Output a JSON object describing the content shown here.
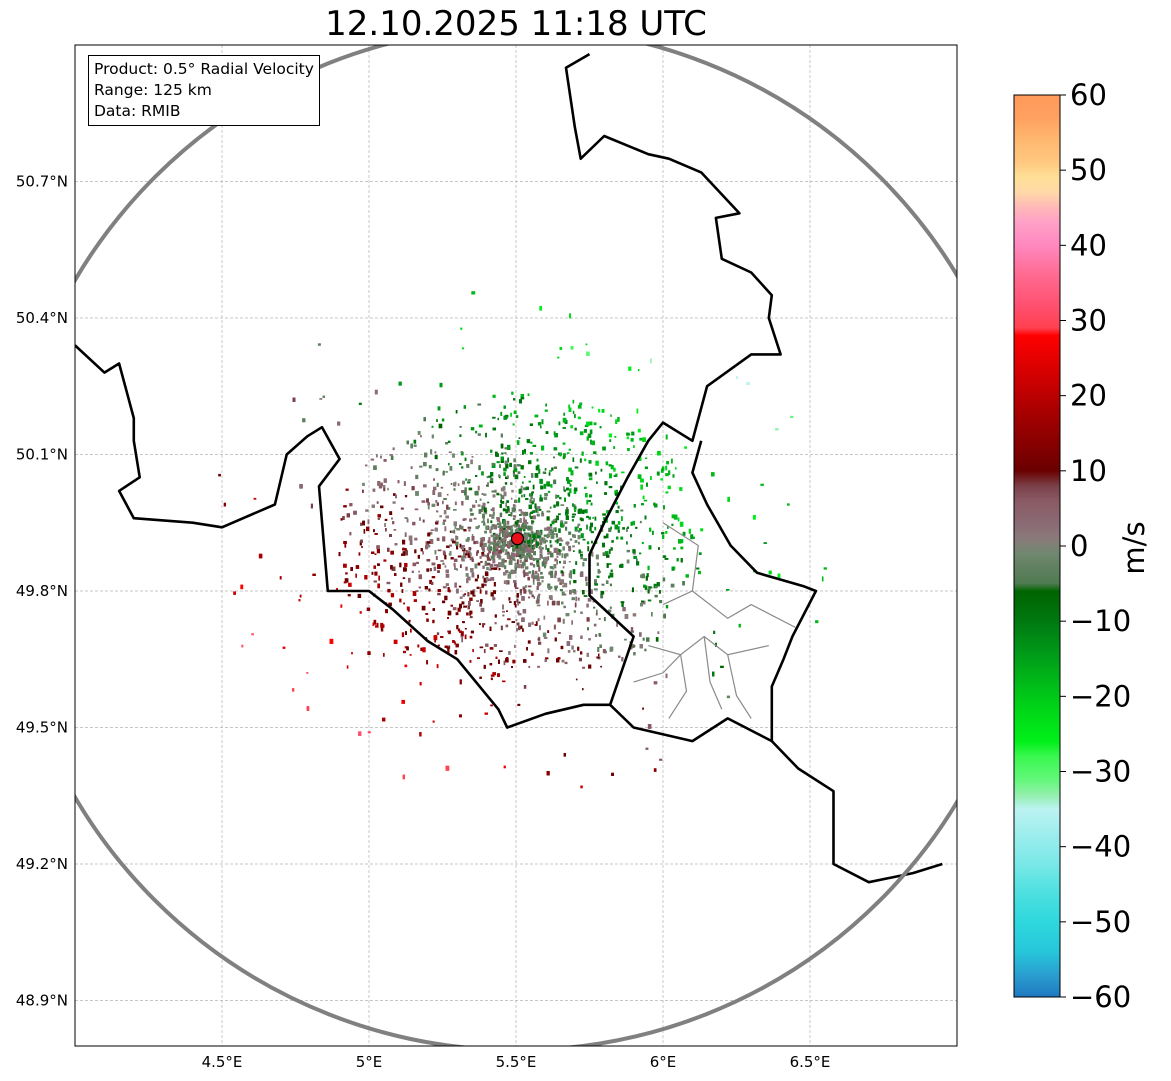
{
  "title": "12.10.2025 11:18 UTC",
  "info": {
    "product": "Product: 0.5° Radial Velocity",
    "range": "Range: 125 km",
    "data": "Data: RMIB"
  },
  "axes": {
    "lon_range": [
      4.0,
      7.0
    ],
    "lat_range": [
      48.8,
      51.0
    ],
    "lon_ticks": [
      {
        "value": 4.5,
        "label": "4.5°E"
      },
      {
        "value": 5.0,
        "label": "5°E"
      },
      {
        "value": 5.5,
        "label": "5.5°E"
      },
      {
        "value": 6.0,
        "label": "6°E"
      },
      {
        "value": 6.5,
        "label": "6.5°E"
      }
    ],
    "lat_ticks": [
      {
        "value": 50.7,
        "label": "50.7°N"
      },
      {
        "value": 50.4,
        "label": "50.4°N"
      },
      {
        "value": 50.1,
        "label": "50.1°N"
      },
      {
        "value": 49.8,
        "label": "49.8°N"
      },
      {
        "value": 49.5,
        "label": "49.5°N"
      },
      {
        "value": 49.2,
        "label": "49.2°N"
      },
      {
        "value": 48.9,
        "label": "48.9°N"
      }
    ]
  },
  "radar": {
    "lon": 5.505,
    "lat": 49.915,
    "range_km": 125,
    "marker_color": "#e8101a",
    "ring_color": "#808080"
  },
  "colorbar": {
    "label": "m/s",
    "min": -60,
    "max": 60,
    "ticks": [
      {
        "value": 60,
        "label": "60"
      },
      {
        "value": 50,
        "label": "50"
      },
      {
        "value": 40,
        "label": "40"
      },
      {
        "value": 30,
        "label": "30"
      },
      {
        "value": 20,
        "label": "20"
      },
      {
        "value": 10,
        "label": "10"
      },
      {
        "value": 0,
        "label": "0"
      },
      {
        "value": -10,
        "label": "−10"
      },
      {
        "value": -20,
        "label": "−20"
      },
      {
        "value": -30,
        "label": "−30"
      },
      {
        "value": -40,
        "label": "−40"
      },
      {
        "value": -50,
        "label": "−50"
      },
      {
        "value": -60,
        "label": "−60"
      }
    ],
    "stops": [
      {
        "v": -60,
        "c": "#1f78c1"
      },
      {
        "v": -57,
        "c": "#2a9fd0"
      },
      {
        "v": -54,
        "c": "#26c6da"
      },
      {
        "v": -50,
        "c": "#2ed8dd"
      },
      {
        "v": -46,
        "c": "#4fe0e0"
      },
      {
        "v": -42,
        "c": "#7de8e8"
      },
      {
        "v": -38,
        "c": "#a0eeee"
      },
      {
        "v": -35,
        "c": "#bdf2f2"
      },
      {
        "v": -33,
        "c": "#90f0a8"
      },
      {
        "v": -31,
        "c": "#60f878"
      },
      {
        "v": -28,
        "c": "#3af850"
      },
      {
        "v": -26,
        "c": "#00f018"
      },
      {
        "v": -22,
        "c": "#00d818"
      },
      {
        "v": -18,
        "c": "#00b818"
      },
      {
        "v": -14,
        "c": "#009818"
      },
      {
        "v": -10,
        "c": "#007810"
      },
      {
        "v": -6,
        "c": "#006400"
      },
      {
        "v": -5,
        "c": "#4f7a50"
      },
      {
        "v": -3,
        "c": "#608060"
      },
      {
        "v": -1,
        "c": "#708870"
      },
      {
        "v": 1,
        "c": "#8a7a7a"
      },
      {
        "v": 3,
        "c": "#8a6a74"
      },
      {
        "v": 6,
        "c": "#8a5a64"
      },
      {
        "v": 8,
        "c": "#7a4048"
      },
      {
        "v": 10,
        "c": "#6a0000"
      },
      {
        "v": 14,
        "c": "#8a0000"
      },
      {
        "v": 18,
        "c": "#aa0000"
      },
      {
        "v": 22,
        "c": "#cc0000"
      },
      {
        "v": 26,
        "c": "#ee0000"
      },
      {
        "v": 28,
        "c": "#ff0000"
      },
      {
        "v": 29,
        "c": "#ff4050"
      },
      {
        "v": 32,
        "c": "#ff5070"
      },
      {
        "v": 36,
        "c": "#ff6a90"
      },
      {
        "v": 40,
        "c": "#ff88c0"
      },
      {
        "v": 43,
        "c": "#ffa0c8"
      },
      {
        "v": 45,
        "c": "#ffb8b8"
      },
      {
        "v": 47,
        "c": "#ffd8a8"
      },
      {
        "v": 49,
        "c": "#ffe098"
      },
      {
        "v": 51,
        "c": "#ffc880"
      },
      {
        "v": 54,
        "c": "#ffb870"
      },
      {
        "v": 57,
        "c": "#ffa060"
      },
      {
        "v": 60,
        "c": "#ff9a5a"
      }
    ]
  },
  "borders": {
    "line_color": "#000000",
    "belgium_lu_fr": [
      [
        4.0,
        50.34
      ],
      [
        4.1,
        50.28
      ],
      [
        4.15,
        50.3
      ],
      [
        4.2,
        50.18
      ],
      [
        4.2,
        50.13
      ],
      [
        4.22,
        50.05
      ],
      [
        4.15,
        50.02
      ],
      [
        4.2,
        49.96
      ],
      [
        4.4,
        49.95
      ],
      [
        4.5,
        49.94
      ],
      [
        4.68,
        49.99
      ],
      [
        4.72,
        50.1
      ],
      [
        4.79,
        50.14
      ],
      [
        4.84,
        50.16
      ],
      [
        4.9,
        50.09
      ],
      [
        4.83,
        50.03
      ],
      [
        4.86,
        49.8
      ],
      [
        5.0,
        49.8
      ],
      [
        5.08,
        49.76
      ],
      [
        5.2,
        49.69
      ],
      [
        5.3,
        49.65
      ],
      [
        5.44,
        49.54
      ],
      [
        5.47,
        49.5
      ],
      [
        5.6,
        49.53
      ],
      [
        5.73,
        49.55
      ],
      [
        5.82,
        49.55
      ],
      [
        5.9,
        49.5
      ],
      [
        6.1,
        49.47
      ],
      [
        6.22,
        49.52
      ],
      [
        6.37,
        49.47
      ],
      [
        6.46,
        49.41
      ],
      [
        6.58,
        49.36
      ],
      [
        6.58,
        49.2
      ],
      [
        6.7,
        49.16
      ],
      [
        6.85,
        49.18
      ],
      [
        6.95,
        49.2
      ]
    ],
    "be_lu_de": [
      [
        5.82,
        49.55
      ],
      [
        5.9,
        49.7
      ],
      [
        5.75,
        49.79
      ],
      [
        5.75,
        49.88
      ],
      [
        5.8,
        49.95
      ],
      [
        5.88,
        50.05
      ],
      [
        5.95,
        50.13
      ],
      [
        6.0,
        50.17
      ],
      [
        6.1,
        50.13
      ],
      [
        6.15,
        50.25
      ],
      [
        6.3,
        50.32
      ],
      [
        6.4,
        50.32
      ],
      [
        6.36,
        50.4
      ],
      [
        6.37,
        50.45
      ],
      [
        6.3,
        50.5
      ],
      [
        6.2,
        50.53
      ],
      [
        6.18,
        50.62
      ],
      [
        6.26,
        50.63
      ],
      [
        6.13,
        50.72
      ],
      [
        6.02,
        50.75
      ],
      [
        5.95,
        50.76
      ],
      [
        5.8,
        50.8
      ],
      [
        5.72,
        50.75
      ],
      [
        5.7,
        50.82
      ],
      [
        5.67,
        50.95
      ],
      [
        5.75,
        50.98
      ]
    ],
    "lu_de_fr": [
      [
        6.13,
        50.13
      ],
      [
        6.1,
        50.06
      ],
      [
        6.15,
        49.99
      ],
      [
        6.23,
        49.9
      ],
      [
        6.32,
        49.84
      ],
      [
        6.48,
        49.81
      ],
      [
        6.52,
        49.8
      ],
      [
        6.44,
        49.7
      ],
      [
        6.41,
        49.65
      ],
      [
        6.37,
        49.59
      ],
      [
        6.37,
        49.47
      ]
    ]
  }
}
